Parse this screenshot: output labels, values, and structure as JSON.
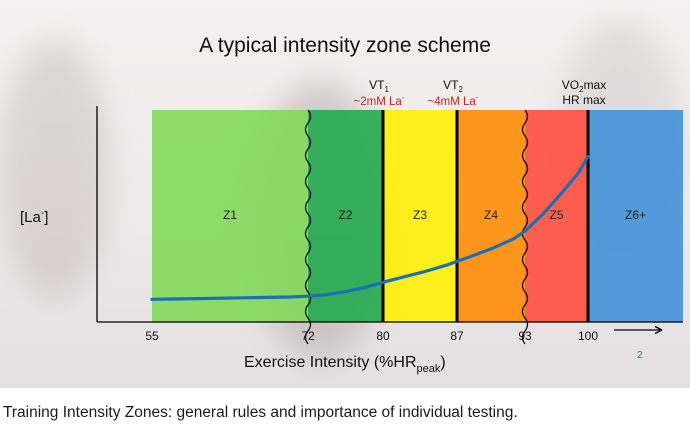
{
  "slide": {
    "title": "A typical intensity zone scheme",
    "page_number": "2"
  },
  "caption": "Training Intensity Zones: general rules and importance of individual testing.",
  "chart_data": {
    "type": "area",
    "title": "A typical intensity zone scheme",
    "xlabel": "Exercise Intensity (%HR",
    "xlabel_sub": "peak",
    "xlabel_end": ")",
    "ylabel": "[La",
    "ylabel_sup": "-",
    "ylabel_end": "]",
    "x_ticks": [
      55,
      72,
      80,
      87,
      93,
      100
    ],
    "x_arrow": "→",
    "zones": [
      {
        "label": "Z1",
        "from": 55,
        "to": 72,
        "color": "#7ed957"
      },
      {
        "label": "Z2",
        "from": 72,
        "to": 80,
        "color": "#1fa84a"
      },
      {
        "label": "Z3",
        "from": 80,
        "to": 87,
        "color": "#ffef00"
      },
      {
        "label": "Z4",
        "from": 87,
        "to": 93,
        "color": "#ff8a00"
      },
      {
        "label": "Z5",
        "from": 93,
        "to": 100,
        "color": "#ff4a3a"
      },
      {
        "label": "Z6+",
        "from": 100,
        "to": 109,
        "color": "#3c8fd8"
      }
    ],
    "thresholds": [
      {
        "x": 80,
        "name": "VT",
        "sub": "1",
        "note": "~2mM La",
        "note_sup": "-"
      },
      {
        "x": 87,
        "name": "VT",
        "sub": "2",
        "note": "~4mM La",
        "note_sup": "-"
      },
      {
        "x": 100,
        "name": "VO",
        "sub": "2",
        "name_end": "max",
        "line2": "HR max"
      }
    ],
    "fuzzy_boundaries": [
      72,
      93
    ],
    "series": [
      {
        "color": "#1a6fb5",
        "x": [
          55,
          60,
          65,
          70,
          72,
          74,
          76,
          78,
          80,
          82,
          84,
          86,
          87,
          88,
          90,
          92,
          93,
          95,
          97,
          99,
          100
        ],
        "y": [
          0.3,
          0.35,
          0.4,
          0.45,
          0.5,
          0.6,
          0.8,
          1.05,
          1.4,
          1.75,
          2.1,
          2.5,
          2.75,
          3.0,
          3.55,
          4.2,
          4.7,
          5.8,
          7.1,
          8.5,
          9.5
        ]
      }
    ],
    "xlim": [
      55,
      109
    ],
    "ylim": [
      0,
      12.5
    ]
  }
}
